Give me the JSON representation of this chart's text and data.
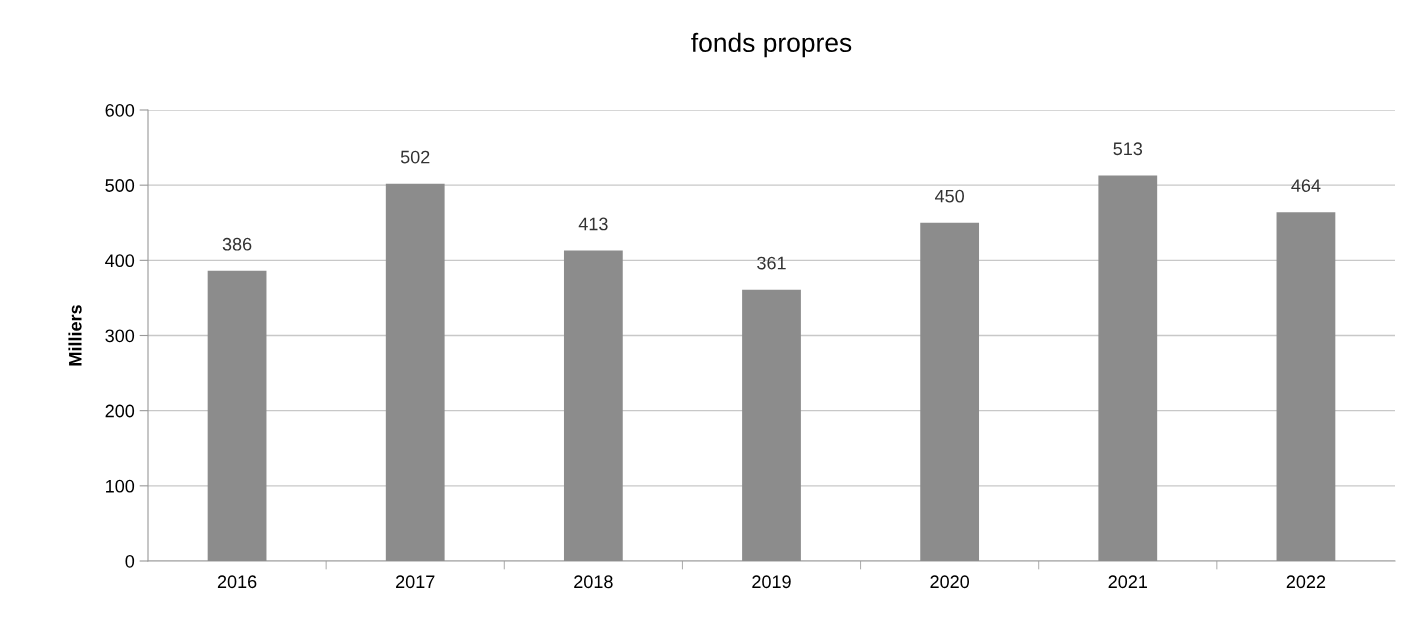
{
  "chart_data": {
    "type": "bar",
    "title": "fonds propres",
    "ylabel": "Milliers",
    "categories": [
      "2016",
      "2017",
      "2018",
      "2019",
      "2020",
      "2021",
      "2022"
    ],
    "values": [
      386,
      502,
      413,
      361,
      450,
      513,
      464
    ],
    "color": "#8c8c8c",
    "ylim": [
      0,
      600
    ],
    "yticks": [
      0,
      100,
      200,
      300,
      400,
      500,
      600
    ],
    "grid": "y",
    "data_labels": true
  }
}
